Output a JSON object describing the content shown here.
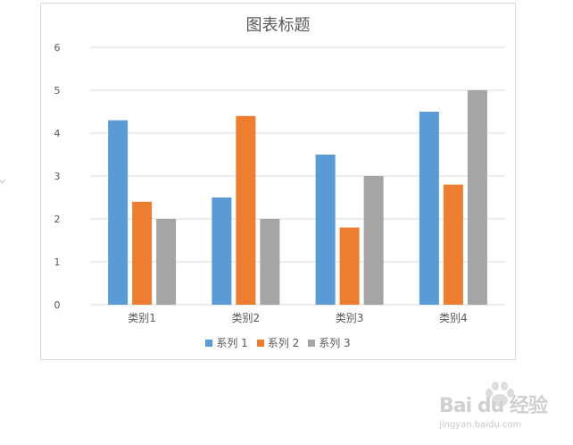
{
  "chart_data": {
    "type": "bar",
    "title": "图表标题",
    "xlabel": "",
    "ylabel": "",
    "categories": [
      "类别1",
      "类别2",
      "类别3",
      "类别4"
    ],
    "series": [
      {
        "name": "系列 1",
        "color": "#5b9bd5",
        "values": [
          4.3,
          2.5,
          3.5,
          4.5
        ]
      },
      {
        "name": "系列 2",
        "color": "#ed7d31",
        "values": [
          2.4,
          4.4,
          1.8,
          2.8
        ]
      },
      {
        "name": "系列 3",
        "color": "#a5a5a5",
        "values": [
          2.0,
          2.0,
          3.0,
          5.0
        ]
      }
    ],
    "ylim": [
      0,
      6
    ],
    "yticks": [
      "0",
      "1",
      "2",
      "3",
      "4",
      "5",
      "6"
    ],
    "grid": true,
    "legend_position": "bottom"
  },
  "watermark": {
    "brand": "Bai du 经验",
    "url": "jingyan.baidu.com"
  }
}
